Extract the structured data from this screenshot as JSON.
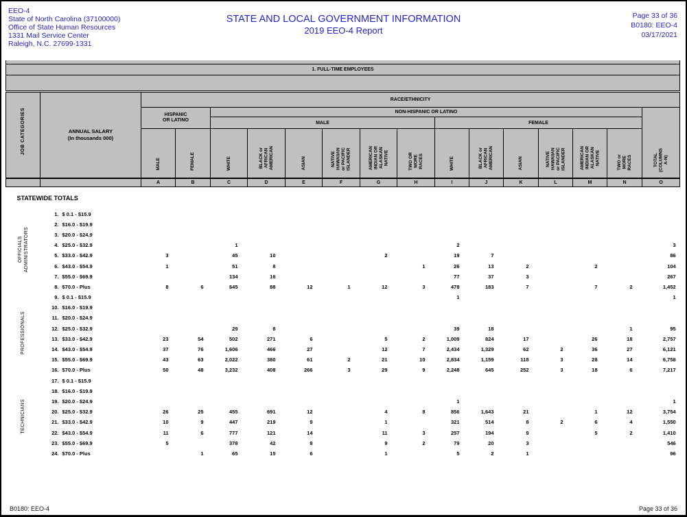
{
  "header": {
    "left_lines": [
      "EEO-4",
      "State of North Carolina (37100000)",
      "Office of State Human Resources",
      "1331 Mail Service Center",
      "Raleigh, N.C. 27699-1331"
    ],
    "title_line1": "STATE AND LOCAL GOVERNMENT INFORMATION",
    "title_line2": "2019 EEO-4 Report",
    "right_lines": [
      "Page 33 of 36",
      "B0180: EEO-4",
      "03/17/2021"
    ],
    "accent_blue": "#2424cc"
  },
  "bands": {
    "band1": "1. FULL-TIME EMPLOYEES"
  },
  "table_header": {
    "job_categories": "JOB CATEGORIES",
    "annual_salary_line1": "ANNUAL SALARY",
    "annual_salary_line2": "(In thousands 000)",
    "race_ethnicity": "RACE/ETHNICITY",
    "hispanic": "HISPANIC\nOR LATINO",
    "non_hispanic": "NON-HISPANIC OR LATINO",
    "male_group": "MALE",
    "female_group": "FEMALE",
    "columns": [
      {
        "letter": "A",
        "label": "MALE"
      },
      {
        "letter": "B",
        "label": "FEMALE"
      },
      {
        "letter": "C",
        "label": "WHITE"
      },
      {
        "letter": "D",
        "label": "BLACK or\nAFRICAN\nAMERICAN"
      },
      {
        "letter": "E",
        "label": "ASIAN"
      },
      {
        "letter": "F",
        "label": "NATIVE\nHAWAIIAN\nor PACIFIC\nISLANDER"
      },
      {
        "letter": "G",
        "label": "AMERICAN\nINDIAN OR\nALASKAN\nNATIVE"
      },
      {
        "letter": "H",
        "label": "TWO OR\nMORE\nRACES"
      },
      {
        "letter": "I",
        "label": "WHITE"
      },
      {
        "letter": "J",
        "label": "BLACK or\nAFRICAN\nAMERICAN"
      },
      {
        "letter": "K",
        "label": "ASIAN"
      },
      {
        "letter": "L",
        "label": "NATIVE\nHAWAIIAN\nor PACIFIC\nISLANDER"
      },
      {
        "letter": "M",
        "label": "AMERICAN\nINDIAN OR\nALASKAN\nNATIVE"
      },
      {
        "letter": "N",
        "label": "TWO or\nMORE\nRACES"
      },
      {
        "letter": "O",
        "label": "TOTAL\n(COLUMNS\nA-N)"
      }
    ]
  },
  "statewide_totals_label": "STATEWIDE TOTALS",
  "groups": [
    {
      "name": "OFFICIALS ADMINISTRATORS",
      "label_lines": [
        "OFFICIALS",
        "ADMINISTRATORS"
      ],
      "rows": [
        {
          "num": "1.",
          "salary": "$ 0.1 - $15.9",
          "values": [
            "",
            "",
            "",
            "",
            "",
            "",
            "",
            "",
            "",
            "",
            "",
            "",
            "",
            "",
            ""
          ]
        },
        {
          "num": "2.",
          "salary": "$16.0 - $19.9",
          "values": [
            "",
            "",
            "",
            "",
            "",
            "",
            "",
            "",
            "",
            "",
            "",
            "",
            "",
            "",
            ""
          ]
        },
        {
          "num": "3.",
          "salary": "$20.0 - $24.9",
          "values": [
            "",
            "",
            "",
            "",
            "",
            "",
            "",
            "",
            "",
            "",
            "",
            "",
            "",
            "",
            ""
          ]
        },
        {
          "num": "4.",
          "salary": "$25.0 - $32.9",
          "values": [
            "",
            "",
            "1",
            "",
            "",
            "",
            "",
            "",
            "2",
            "",
            "",
            "",
            "",
            "",
            "3"
          ]
        },
        {
          "num": "5.",
          "salary": "$33.0 - $42.9",
          "values": [
            "3",
            "",
            "45",
            "10",
            "",
            "",
            "2",
            "",
            "19",
            "7",
            "",
            "",
            "",
            "",
            "86"
          ]
        },
        {
          "num": "6.",
          "salary": "$43.0 - $54.9",
          "values": [
            "1",
            "",
            "51",
            "8",
            "",
            "",
            "",
            "1",
            "26",
            "13",
            "2",
            "",
            "2",
            "",
            "104"
          ]
        },
        {
          "num": "7.",
          "salary": "$55.0 - $69.9",
          "values": [
            "",
            "",
            "134",
            "16",
            "",
            "",
            "",
            "",
            "77",
            "37",
            "3",
            "",
            "",
            "",
            "267"
          ]
        },
        {
          "num": "8.",
          "salary": "$70.0 - Plus",
          "values": [
            "8",
            "6",
            "645",
            "88",
            "12",
            "1",
            "12",
            "3",
            "478",
            "183",
            "7",
            "",
            "7",
            "2",
            "1,452"
          ]
        }
      ]
    },
    {
      "name": "PROFESSIONALS",
      "label_lines": [
        "PROFESSIONALS"
      ],
      "rows": [
        {
          "num": "9.",
          "salary": "$ 0.1 - $15.9",
          "values": [
            "",
            "",
            "",
            "",
            "",
            "",
            "",
            "",
            "1",
            "",
            "",
            "",
            "",
            "",
            "1"
          ]
        },
        {
          "num": "10.",
          "salary": "$16.0 - $19.9",
          "values": [
            "",
            "",
            "",
            "",
            "",
            "",
            "",
            "",
            "",
            "",
            "",
            "",
            "",
            "",
            ""
          ]
        },
        {
          "num": "11.",
          "salary": "$20.0 - $24.9",
          "values": [
            "",
            "",
            "",
            "",
            "",
            "",
            "",
            "",
            "",
            "",
            "",
            "",
            "",
            "",
            ""
          ]
        },
        {
          "num": "12.",
          "salary": "$25.0 - $32.9",
          "values": [
            "",
            "",
            "29",
            "8",
            "",
            "",
            "",
            "",
            "39",
            "18",
            "",
            "",
            "",
            "1",
            "95"
          ]
        },
        {
          "num": "13.",
          "salary": "$33.0 - $42.9",
          "values": [
            "23",
            "54",
            "502",
            "271",
            "6",
            "",
            "5",
            "2",
            "1,009",
            "824",
            "17",
            "",
            "26",
            "18",
            "2,757"
          ]
        },
        {
          "num": "14.",
          "salary": "$43.0 - $54.9",
          "values": [
            "37",
            "76",
            "1,606",
            "466",
            "27",
            "",
            "12",
            "7",
            "2,434",
            "1,329",
            "62",
            "2",
            "36",
            "27",
            "6,121"
          ]
        },
        {
          "num": "15.",
          "salary": "$55.0 - $69.9",
          "values": [
            "43",
            "63",
            "2,022",
            "380",
            "61",
            "2",
            "21",
            "10",
            "2,834",
            "1,159",
            "118",
            "3",
            "28",
            "14",
            "6,758"
          ]
        },
        {
          "num": "16.",
          "salary": "$70.0 - Plus",
          "values": [
            "50",
            "48",
            "3,232",
            "408",
            "266",
            "3",
            "29",
            "9",
            "2,248",
            "645",
            "252",
            "3",
            "18",
            "6",
            "7,217"
          ]
        }
      ]
    },
    {
      "name": "TECHNICIANS",
      "label_lines": [
        "TECHNICIANS"
      ],
      "rows": [
        {
          "num": "17.",
          "salary": "$ 0.1 - $15.9",
          "values": [
            "",
            "",
            "",
            "",
            "",
            "",
            "",
            "",
            "",
            "",
            "",
            "",
            "",
            "",
            ""
          ]
        },
        {
          "num": "18.",
          "salary": "$16.0 - $19.9",
          "values": [
            "",
            "",
            "",
            "",
            "",
            "",
            "",
            "",
            "",
            "",
            "",
            "",
            "",
            "",
            ""
          ]
        },
        {
          "num": "19.",
          "salary": "$20.0 - $24.9",
          "values": [
            "",
            "",
            "",
            "",
            "",
            "",
            "",
            "",
            "1",
            "",
            "",
            "",
            "",
            "",
            "1"
          ]
        },
        {
          "num": "20.",
          "salary": "$25.0 - $32.9",
          "values": [
            "26",
            "25",
            "455",
            "691",
            "12",
            "",
            "4",
            "8",
            "856",
            "1,643",
            "21",
            "",
            "1",
            "12",
            "3,754"
          ]
        },
        {
          "num": "21.",
          "salary": "$33.0 - $42.9",
          "values": [
            "10",
            "9",
            "447",
            "219",
            "9",
            "",
            "1",
            "",
            "321",
            "514",
            "8",
            "2",
            "6",
            "4",
            "1,550"
          ]
        },
        {
          "num": "22.",
          "salary": "$43.0 - $54.9",
          "values": [
            "11",
            "6",
            "777",
            "121",
            "14",
            "",
            "11",
            "3",
            "257",
            "194",
            "9",
            "",
            "5",
            "2",
            "1,410"
          ]
        },
        {
          "num": "23.",
          "salary": "$55.0 - $69.9",
          "values": [
            "5",
            "",
            "378",
            "42",
            "8",
            "",
            "9",
            "2",
            "79",
            "20",
            "3",
            "",
            "",
            "",
            "546"
          ]
        },
        {
          "num": "24.",
          "salary": "$70.0 - Plus",
          "values": [
            "",
            "1",
            "65",
            "15",
            "6",
            "",
            "1",
            "",
            "5",
            "2",
            "1",
            "",
            "",
            "",
            "96"
          ]
        }
      ]
    }
  ],
  "footer": {
    "left": "B0180: EEO-4",
    "right": "Page 33 of 36"
  }
}
